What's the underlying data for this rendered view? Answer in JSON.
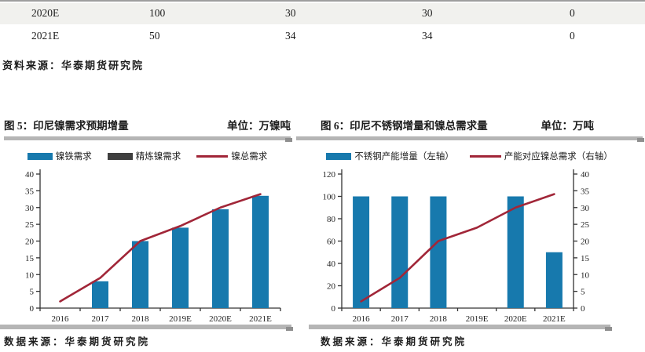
{
  "table": {
    "rows": [
      {
        "cells": [
          "2020E",
          "100",
          "30",
          "30",
          "0"
        ]
      },
      {
        "cells": [
          "2021E",
          "50",
          "34",
          "34",
          "0"
        ]
      }
    ]
  },
  "table_source": "资料来源：华泰期货研究院",
  "panels": [
    {
      "figure_title": "图 5：印尼镍需求预期增量",
      "unit": "单位：万镍吨",
      "source": "数据来源：华泰期货研究院"
    },
    {
      "figure_title": "图 6：印尼不锈钢增量和镍总需求量",
      "unit": "单位：万吨",
      "source": "数据来源：华泰期货研究院"
    }
  ],
  "colors": {
    "bar_blue": "#1779ad",
    "bar_dark_gray": "#3f3f3f",
    "line_red": "#a12638",
    "rule_gray": "#b5b5b5",
    "row_shade": "#f1f1ee"
  },
  "chart_data": [
    {
      "type": "bar",
      "title": "印尼镍需求预期增量",
      "unit": "万镍吨",
      "categories": [
        "2016",
        "2017",
        "2018",
        "2019E",
        "2020E",
        "2021E"
      ],
      "series": [
        {
          "name": "镍铁需求",
          "type": "bar",
          "axis": "left",
          "color": "#1779ad",
          "values": [
            0,
            8,
            20,
            24,
            29.5,
            33.5
          ]
        },
        {
          "name": "精炼镍需求",
          "type": "bar",
          "axis": "left",
          "color": "#3f3f3f",
          "values": [
            0,
            0,
            0,
            0,
            0,
            0
          ]
        },
        {
          "name": "镍总需求",
          "type": "line",
          "axis": "left",
          "color": "#a12638",
          "values": [
            2,
            9,
            20,
            24.5,
            30,
            34
          ]
        }
      ],
      "left_axis": {
        "min": 0,
        "max": 40,
        "step": 5
      },
      "legend_position": "top",
      "grid": false
    },
    {
      "type": "bar",
      "title": "印尼不锈钢增量和镍总需求量",
      "unit": "万吨",
      "categories": [
        "2016",
        "2017",
        "2018",
        "2019E",
        "2020E",
        "2021E"
      ],
      "series": [
        {
          "name": "不锈钢产能增量（左轴）",
          "type": "bar",
          "axis": "left",
          "color": "#1779ad",
          "values": [
            100,
            100,
            100,
            0,
            100,
            50
          ]
        },
        {
          "name": "产能对应镍总需求（右轴）",
          "type": "line",
          "axis": "right",
          "color": "#a12638",
          "values": [
            2,
            9,
            20,
            24,
            30,
            34
          ]
        }
      ],
      "left_axis": {
        "min": 0,
        "max": 120,
        "step": 20
      },
      "right_axis": {
        "min": 0,
        "max": 40,
        "step": 5
      },
      "legend_position": "top",
      "grid": false
    }
  ]
}
